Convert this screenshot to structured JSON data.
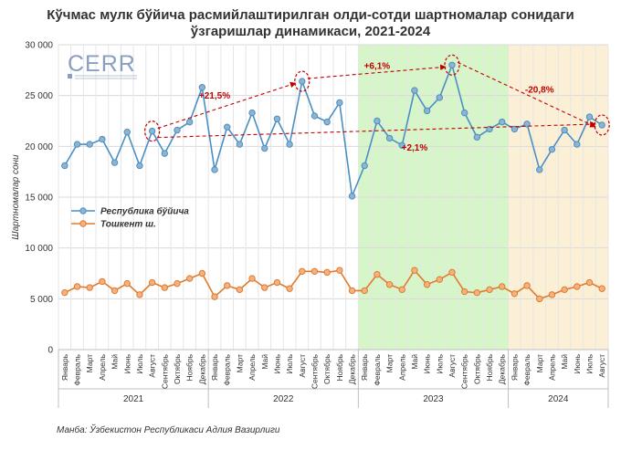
{
  "chart_data": {
    "type": "line",
    "title": "Кўчмас мулк бўйича расмийлаштирилган олди-сотди шартномалар сонидаги ўзгаришлар динамикаси, 2021-2024",
    "title_lines": [
      "Кўчмас мулк бўйича расмийлаштирилган олди-сотди шартномалар сонидаги",
      "ўзгаришлар динамикаси, 2021-2024"
    ],
    "ylabel": "Шартномалар сони",
    "ylim": [
      0,
      30000
    ],
    "yticks": [
      0,
      5000,
      10000,
      15000,
      20000,
      25000,
      30000
    ],
    "ytick_labels": [
      "0",
      "5 000",
      "10 000",
      "15 000",
      "20 000",
      "25 000",
      "30 000"
    ],
    "months": [
      "Январь",
      "Февраль",
      "Март",
      "Апрель",
      "Май",
      "Июнь",
      "Июль",
      "Август",
      "Сентябрь",
      "Октябрь",
      "Ноябрь",
      "Декабрь"
    ],
    "years": [
      {
        "label": "2021",
        "n": 12
      },
      {
        "label": "2022",
        "n": 12
      },
      {
        "label": "2023",
        "n": 12
      },
      {
        "label": "2024",
        "n": 8
      }
    ],
    "series": [
      {
        "name": "Республика бўйича",
        "color": "#4a8fc4",
        "marker": "#8fb4cf",
        "values": [
          18100,
          20200,
          20200,
          20700,
          18400,
          21400,
          18100,
          21500,
          19300,
          21600,
          22400,
          25800,
          17700,
          21900,
          20200,
          23300,
          19800,
          22700,
          20200,
          26400,
          23000,
          22400,
          24300,
          15100,
          18100,
          22500,
          20800,
          20100,
          25500,
          23500,
          24800,
          28000,
          23300,
          20900,
          21700,
          22400,
          21700,
          22200,
          17700,
          19700,
          21600,
          20200,
          22900,
          22100
        ]
      },
      {
        "name": "Тошкент ш.",
        "color": "#e07b2b",
        "marker": "#f4b183",
        "values": [
          5600,
          6200,
          6100,
          6700,
          5800,
          6500,
          5400,
          6600,
          6100,
          6500,
          7000,
          7500,
          5200,
          6300,
          5900,
          7000,
          6100,
          6600,
          6000,
          7700,
          7700,
          7600,
          7800,
          5800,
          5800,
          7400,
          6400,
          5900,
          7800,
          6400,
          6900,
          7600,
          5700,
          5600,
          5900,
          6200,
          5500,
          6300,
          5000,
          5400,
          5900,
          6200,
          6600,
          6000
        ]
      }
    ],
    "shaded_regions": [
      {
        "from_index": 24,
        "to_index": 35,
        "color": "#d6f5c8"
      },
      {
        "from_index": 36,
        "to_index": 43,
        "color": "#fbf0d6"
      }
    ],
    "annotations": [
      {
        "text": "+21,5%",
        "color": "#c00000"
      },
      {
        "text": "+6,1%",
        "color": "#c00000"
      },
      {
        "text": "-20,8%",
        "color": "#c00000"
      },
      {
        "text": "+2,1%",
        "color": "#c00000"
      }
    ],
    "legend": "middle-left",
    "grid": true,
    "source": "Манба: Ўзбекистон Республикаси Адлия Вазирлиги",
    "logo": "CERR"
  }
}
